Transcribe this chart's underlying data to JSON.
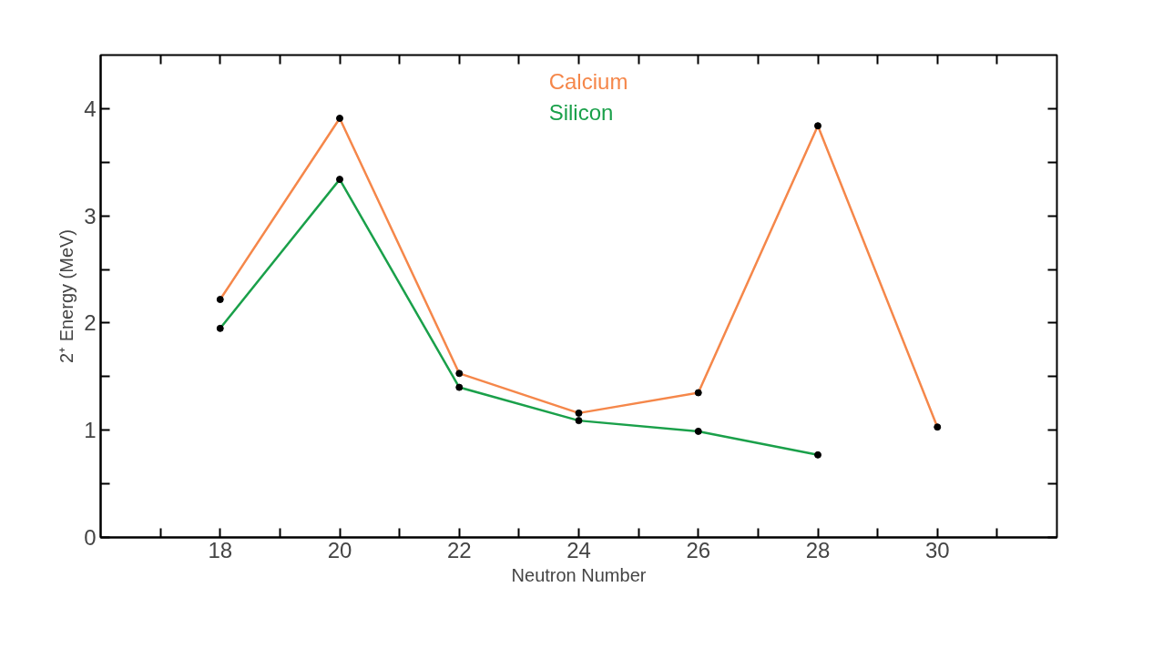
{
  "chart_data": {
    "type": "line",
    "xlabel": "Neutron Number",
    "ylabel": "2⁺ Energy (MeV)",
    "x": [
      18,
      20,
      22,
      24,
      26,
      28,
      30
    ],
    "series": [
      {
        "name": "Calcium",
        "color": "#f5874a",
        "values": [
          2.22,
          3.91,
          1.53,
          1.16,
          1.35,
          3.84,
          1.03
        ]
      },
      {
        "name": "Silicon",
        "color": "#1aa04a",
        "values": [
          1.95,
          3.34,
          1.4,
          1.09,
          0.99,
          0.77,
          null
        ]
      }
    ],
    "xlim": [
      16,
      32
    ],
    "ylim": [
      0,
      4.5
    ],
    "xticks": [
      {
        "value": 17,
        "label": null
      },
      18,
      {
        "value": 19,
        "label": null
      },
      20,
      {
        "value": 21,
        "label": null
      },
      22,
      {
        "value": 23,
        "label": null
      },
      24,
      {
        "value": 25,
        "label": null
      },
      26,
      {
        "value": 27,
        "label": null
      },
      28,
      {
        "value": 29,
        "label": null
      },
      30,
      {
        "value": 31,
        "label": null
      }
    ],
    "yticks": [
      0,
      {
        "value": 0.5,
        "label": null
      },
      1,
      {
        "value": 1.5,
        "label": null
      },
      2,
      {
        "value": 2.5,
        "label": null
      },
      3,
      {
        "value": 3.5,
        "label": null
      },
      4
    ],
    "grid": false,
    "legend": "top",
    "marker": "circle",
    "line_style": "solid"
  }
}
